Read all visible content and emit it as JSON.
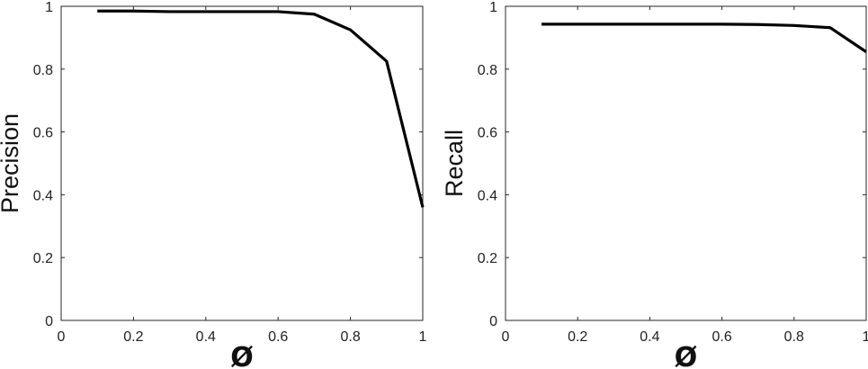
{
  "chart_data": [
    {
      "type": "line",
      "xlabel": "Ø",
      "ylabel": "Precision",
      "xlim": [
        0,
        1
      ],
      "ylim": [
        0,
        1
      ],
      "xticks": [
        "0",
        "0.2",
        "0.4",
        "0.6",
        "0.8",
        "1"
      ],
      "yticks": [
        "0",
        "0.2",
        "0.4",
        "0.6",
        "0.8",
        "1"
      ],
      "grid": false,
      "series": [
        {
          "x": [
            0.1,
            0.2,
            0.3,
            0.4,
            0.5,
            0.6,
            0.7,
            0.8,
            0.9,
            1.0
          ],
          "y": [
            0.985,
            0.985,
            0.983,
            0.983,
            0.983,
            0.983,
            0.975,
            0.925,
            0.825,
            0.36
          ],
          "color": "#000000"
        }
      ]
    },
    {
      "type": "line",
      "xlabel": "Ø",
      "ylabel": "Recall",
      "xlim": [
        0,
        1
      ],
      "ylim": [
        0,
        1
      ],
      "xticks": [
        "0",
        "0.2",
        "0.4",
        "0.6",
        "0.8",
        "1"
      ],
      "yticks": [
        "0",
        "0.2",
        "0.4",
        "0.6",
        "0.8",
        "1"
      ],
      "grid": false,
      "series": [
        {
          "x": [
            0.1,
            0.2,
            0.3,
            0.4,
            0.5,
            0.6,
            0.7,
            0.8,
            0.9,
            1.0
          ],
          "y": [
            0.943,
            0.943,
            0.943,
            0.943,
            0.943,
            0.943,
            0.942,
            0.939,
            0.932,
            0.855
          ],
          "color": "#000000"
        }
      ]
    }
  ]
}
